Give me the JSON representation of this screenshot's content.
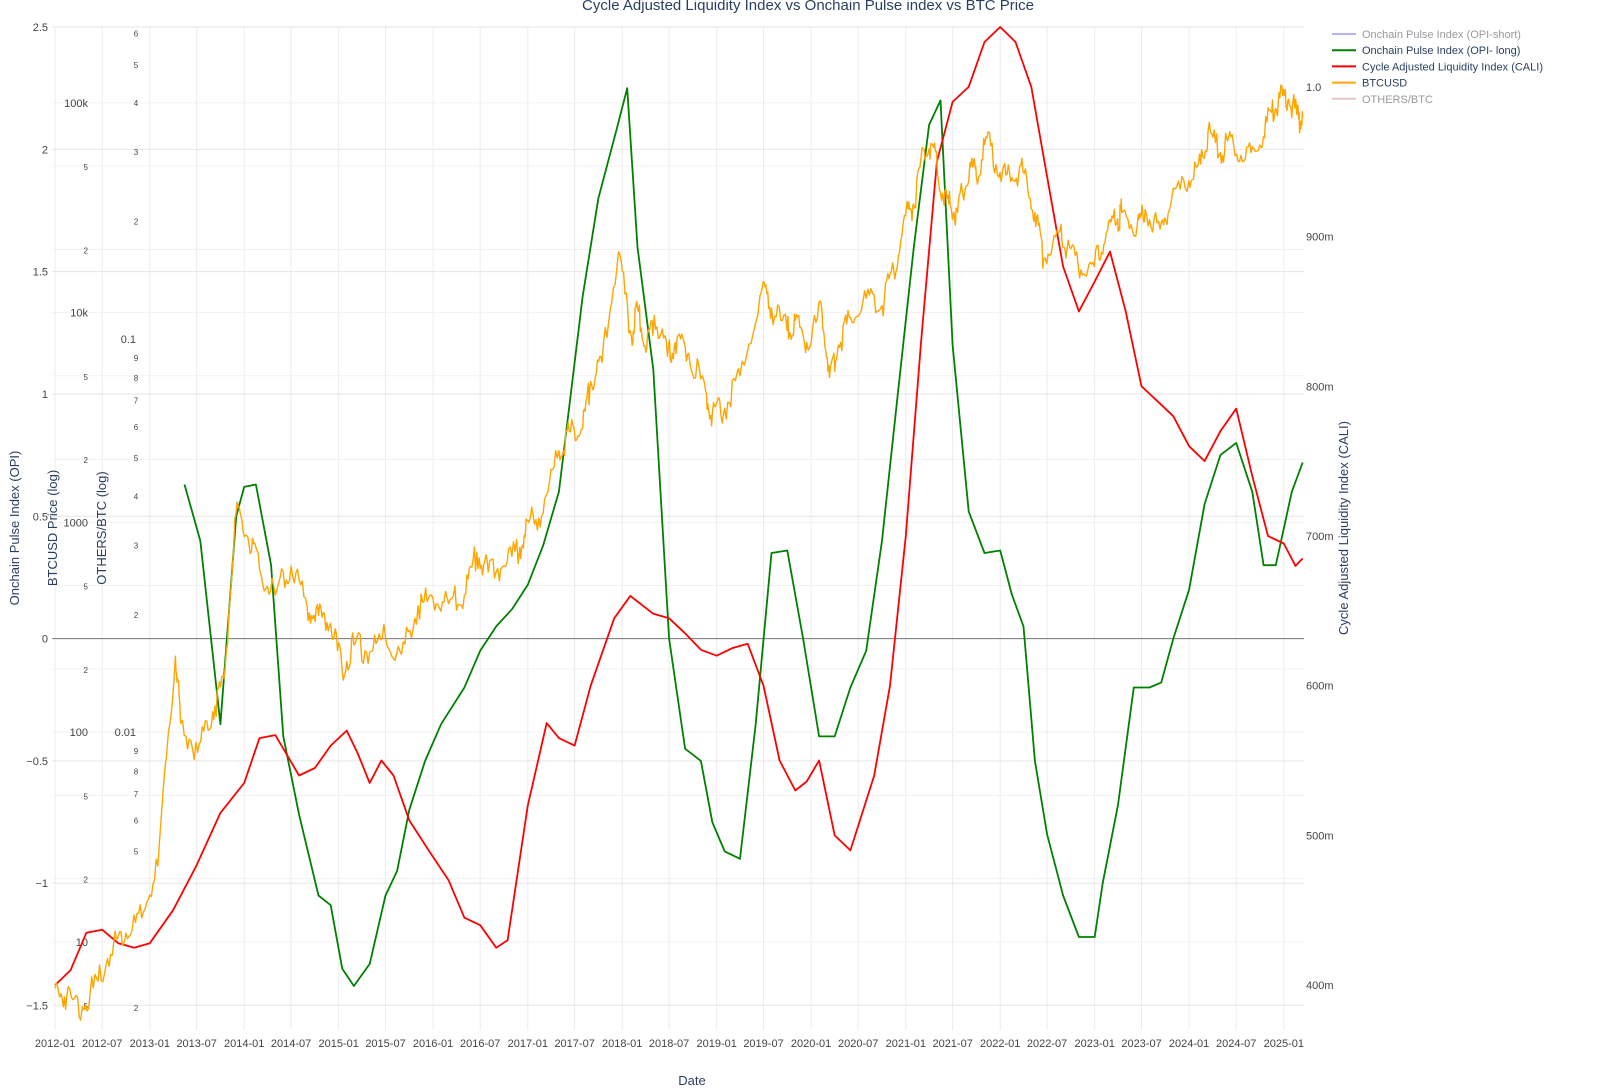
{
  "chart_data": {
    "type": "line",
    "title": "Cycle Adjusted Liquidity Index vs Onchain Pulse index vs BTC Price",
    "xlabel": "Date",
    "x_ticks": [
      "2012-01",
      "2012-07",
      "2013-01",
      "2013-07",
      "2014-01",
      "2014-07",
      "2015-01",
      "2015-07",
      "2016-01",
      "2016-07",
      "2017-01",
      "2017-07",
      "2018-01",
      "2018-07",
      "2019-01",
      "2019-07",
      "2020-01",
      "2020-07",
      "2021-01",
      "2021-07",
      "2022-01",
      "2022-07",
      "2023-01",
      "2023-07",
      "2024-01",
      "2024-07",
      "2025-01"
    ],
    "x_range": [
      "2011-12-20",
      "2025-03-20"
    ],
    "axes": {
      "opi": {
        "title": "Onchain Pulse Index (OPI)",
        "range": [
          -1.6,
          2.5
        ],
        "ticks": [
          {
            "v": 2.5,
            "t": "2.5"
          },
          {
            "v": 2,
            "t": "2"
          },
          {
            "v": 1.5,
            "t": "1.5"
          },
          {
            "v": 1,
            "t": "1"
          },
          {
            "v": 0.5,
            "t": "0.5"
          },
          {
            "v": 0,
            "t": "0"
          },
          {
            "v": -0.5,
            "t": "−0.5"
          },
          {
            "v": -1,
            "t": "−1"
          },
          {
            "v": -1.5,
            "t": "−1.5"
          }
        ]
      },
      "btc": {
        "title": "BTCUSD Price (log)",
        "scale": "log",
        "range": [
          3.8,
          230000
        ],
        "ticks": [
          {
            "v": 100000,
            "t": "100k"
          },
          {
            "v": 50000,
            "t": "5"
          },
          {
            "v": 20000,
            "t": "2"
          },
          {
            "v": 10000,
            "t": "10k"
          },
          {
            "v": 5000,
            "t": "5"
          },
          {
            "v": 2000,
            "t": "2"
          },
          {
            "v": 1000,
            "t": "1000"
          },
          {
            "v": 500,
            "t": "5"
          },
          {
            "v": 200,
            "t": "2"
          },
          {
            "v": 100,
            "t": "100"
          },
          {
            "v": 50,
            "t": "5"
          },
          {
            "v": 20,
            "t": "2"
          },
          {
            "v": 10,
            "t": "10"
          },
          {
            "v": 5,
            "t": "5"
          }
        ]
      },
      "others": {
        "title": "OTHERS/BTC (log)",
        "scale": "log",
        "range": [
          0.00175,
          0.62
        ],
        "ticks": [
          {
            "v": 0.6,
            "t": "6"
          },
          {
            "v": 0.5,
            "t": "5"
          },
          {
            "v": 0.4,
            "t": "4"
          },
          {
            "v": 0.3,
            "t": "3"
          },
          {
            "v": 0.2,
            "t": "2"
          },
          {
            "v": 0.1,
            "t": "0.1"
          },
          {
            "v": 0.09,
            "t": "9"
          },
          {
            "v": 0.08,
            "t": "8"
          },
          {
            "v": 0.07,
            "t": "7"
          },
          {
            "v": 0.06,
            "t": "6"
          },
          {
            "v": 0.05,
            "t": "5"
          },
          {
            "v": 0.04,
            "t": "4"
          },
          {
            "v": 0.03,
            "t": "3"
          },
          {
            "v": 0.02,
            "t": "2"
          },
          {
            "v": 0.01,
            "t": "0.01"
          },
          {
            "v": 0.009,
            "t": "9"
          },
          {
            "v": 0.008,
            "t": "8"
          },
          {
            "v": 0.007,
            "t": "7"
          },
          {
            "v": 0.006,
            "t": "6"
          },
          {
            "v": 0.005,
            "t": "5"
          },
          {
            "v": 0.002,
            "t": "2"
          }
        ]
      },
      "cali": {
        "title": "Cycle Adjusted Liquidity Index (CALI)",
        "range": [
          0.37,
          1.04
        ],
        "ticks": [
          {
            "v": 1.0,
            "t": "1.0"
          },
          {
            "v": 0.9,
            "t": "900m"
          },
          {
            "v": 0.8,
            "t": "800m"
          },
          {
            "v": 0.7,
            "t": "700m"
          },
          {
            "v": 0.6,
            "t": "600m"
          },
          {
            "v": 0.5,
            "t": "500m"
          },
          {
            "v": 0.4,
            "t": "400m"
          }
        ]
      }
    },
    "series": [
      {
        "name": "Onchain Pulse Index (OPI-short)",
        "color": "#8080ff",
        "axis": "opi",
        "visible": false
      },
      {
        "name": "Onchain Pulse Index (OPI- long)",
        "color": "#008000",
        "axis": "opi",
        "x": [
          "2013-05-15",
          "2013-07-15",
          "2013-10-01",
          "2013-12-01",
          "2014-01-01",
          "2014-02-15",
          "2014-04-15",
          "2014-06-01",
          "2014-08-01",
          "2014-10-15",
          "2014-12-01",
          "2015-01-15",
          "2015-03-01",
          "2015-05-01",
          "2015-07-01",
          "2015-08-15",
          "2015-10-01",
          "2015-12-01",
          "2016-02-01",
          "2016-05-01",
          "2016-07-01",
          "2016-09-01",
          "2016-11-01",
          "2017-01-01",
          "2017-03-01",
          "2017-05-01",
          "2017-08-01",
          "2017-10-01",
          "2017-12-15",
          "2018-01-20",
          "2018-03-01",
          "2018-05-01",
          "2018-07-01",
          "2018-09-01",
          "2018-11-01",
          "2018-12-15",
          "2019-02-01",
          "2019-04-01",
          "2019-06-01",
          "2019-08-01",
          "2019-10-01",
          "2019-12-01",
          "2020-02-01",
          "2020-04-01",
          "2020-06-01",
          "2020-08-01",
          "2020-10-01",
          "2020-12-01",
          "2021-02-01",
          "2021-04-01",
          "2021-05-15",
          "2021-07-01",
          "2021-09-01",
          "2021-11-01",
          "2022-01-01",
          "2022-02-15",
          "2022-04-01",
          "2022-05-15",
          "2022-07-01",
          "2022-09-01",
          "2022-11-01",
          "2023-01-01",
          "2023-02-01",
          "2023-04-01",
          "2023-06-01",
          "2023-08-01",
          "2023-09-15",
          "2023-11-01",
          "2024-01-01",
          "2024-03-01",
          "2024-05-01",
          "2024-07-01",
          "2024-09-01",
          "2024-10-15",
          "2024-12-01",
          "2025-02-01",
          "2025-03-15"
        ],
        "y": [
          0.63,
          0.4,
          -0.35,
          0.5,
          0.62,
          0.63,
          0.3,
          -0.4,
          -0.72,
          -1.05,
          -1.09,
          -1.35,
          -1.42,
          -1.33,
          -1.05,
          -0.95,
          -0.7,
          -0.5,
          -0.35,
          -0.2,
          -0.05,
          0.05,
          0.12,
          0.22,
          0.38,
          0.6,
          1.4,
          1.8,
          2.1,
          2.25,
          1.6,
          1.1,
          0.0,
          -0.45,
          -0.5,
          -0.75,
          -0.87,
          -0.9,
          -0.35,
          0.35,
          0.36,
          0.0,
          -0.4,
          -0.4,
          -0.2,
          -0.05,
          0.4,
          1.0,
          1.6,
          2.1,
          2.2,
          1.2,
          0.52,
          0.35,
          0.36,
          0.18,
          0.05,
          -0.5,
          -0.8,
          -1.05,
          -1.22,
          -1.22,
          -1.0,
          -0.68,
          -0.2,
          -0.2,
          -0.18,
          0.0,
          0.2,
          0.55,
          0.75,
          0.8,
          0.6,
          0.3,
          0.3,
          0.6,
          0.72
        ]
      },
      {
        "name": "Cycle Adjusted Liquidity Index (CALI)",
        "color": "#ff0000",
        "axis": "cali",
        "x": [
          "2012-01-01",
          "2012-03-01",
          "2012-05-01",
          "2012-07-01",
          "2012-09-01",
          "2012-11-01",
          "2013-01-01",
          "2013-04-01",
          "2013-07-01",
          "2013-10-01",
          "2014-01-01",
          "2014-03-01",
          "2014-05-01",
          "2014-08-01",
          "2014-10-01",
          "2014-12-01",
          "2015-02-01",
          "2015-03-15",
          "2015-05-01",
          "2015-06-15",
          "2015-08-01",
          "2015-10-01",
          "2015-12-15",
          "2016-03-01",
          "2016-05-01",
          "2016-07-01",
          "2016-09-01",
          "2016-10-15",
          "2017-01-01",
          "2017-03-15",
          "2017-05-01",
          "2017-07-01",
          "2017-09-01",
          "2017-12-01",
          "2018-02-01",
          "2018-05-01",
          "2018-07-01",
          "2018-09-01",
          "2018-11-01",
          "2019-01-01",
          "2019-03-01",
          "2019-05-01",
          "2019-07-01",
          "2019-09-01",
          "2019-11-01",
          "2019-12-15",
          "2020-02-01",
          "2020-04-01",
          "2020-06-01",
          "2020-09-01",
          "2020-11-01",
          "2021-01-01",
          "2021-03-01",
          "2021-05-01",
          "2021-07-01",
          "2021-09-01",
          "2021-11-01",
          "2022-01-01",
          "2022-03-01",
          "2022-05-01",
          "2022-07-01",
          "2022-09-01",
          "2022-11-01",
          "2023-01-01",
          "2023-03-01",
          "2023-05-01",
          "2023-07-01",
          "2023-09-01",
          "2023-11-01",
          "2024-01-01",
          "2024-03-01",
          "2024-05-01",
          "2024-07-01",
          "2024-09-01",
          "2024-11-01",
          "2025-01-01",
          "2025-02-15",
          "2025-03-15"
        ],
        "y": [
          0.4,
          0.41,
          0.435,
          0.437,
          0.428,
          0.425,
          0.428,
          0.45,
          0.48,
          0.515,
          0.535,
          0.565,
          0.567,
          0.54,
          0.545,
          0.56,
          0.57,
          0.555,
          0.535,
          0.55,
          0.54,
          0.51,
          0.49,
          0.47,
          0.445,
          0.44,
          0.425,
          0.43,
          0.52,
          0.575,
          0.565,
          0.56,
          0.6,
          0.645,
          0.66,
          0.648,
          0.645,
          0.635,
          0.624,
          0.62,
          0.625,
          0.628,
          0.6,
          0.55,
          0.53,
          0.536,
          0.55,
          0.5,
          0.49,
          0.54,
          0.6,
          0.7,
          0.83,
          0.95,
          0.99,
          1.0,
          1.03,
          1.04,
          1.03,
          1.0,
          0.94,
          0.88,
          0.85,
          0.87,
          0.89,
          0.85,
          0.8,
          0.79,
          0.78,
          0.76,
          0.75,
          0.77,
          0.785,
          0.74,
          0.7,
          0.695,
          0.68,
          0.685
        ]
      },
      {
        "name": "BTCUSD",
        "color": "#ffa500",
        "axis": "btc",
        "x": [
          "2012-01-01",
          "2012-02-15",
          "2012-04-15",
          "2012-06-15",
          "2012-08-15",
          "2012-10-01",
          "2012-12-01",
          "2013-02-01",
          "2013-04-10",
          "2013-05-01",
          "2013-07-05",
          "2013-09-01",
          "2013-10-15",
          "2013-11-30",
          "2014-01-15",
          "2014-03-01",
          "2014-05-01",
          "2014-07-01",
          "2014-09-01",
          "2014-10-15",
          "2014-12-01",
          "2015-01-14",
          "2015-03-01",
          "2015-05-01",
          "2015-07-01",
          "2015-09-01",
          "2015-11-04",
          "2016-01-01",
          "2016-03-01",
          "2016-05-01",
          "2016-06-18",
          "2016-08-01",
          "2016-10-01",
          "2016-12-01",
          "2017-01-05",
          "2017-03-01",
          "2017-05-01",
          "2017-06-15",
          "2017-08-01",
          "2017-09-01",
          "2017-10-15",
          "2017-12-17",
          "2018-02-06",
          "2018-03-01",
          "2018-04-06",
          "2018-05-05",
          "2018-06-25",
          "2018-08-01",
          "2018-09-15",
          "2018-11-20",
          "2018-12-15",
          "2019-02-01",
          "2019-04-01",
          "2019-06-26",
          "2019-08-01",
          "2019-09-30",
          "2019-11-01",
          "2019-12-15",
          "2020-02-12",
          "2020-03-12",
          "2020-04-15",
          "2020-06-01",
          "2020-08-01",
          "2020-10-01",
          "2020-11-15",
          "2020-12-31",
          "2021-01-31",
          "2021-03-13",
          "2021-04-14",
          "2021-05-23",
          "2021-06-22",
          "2021-07-20",
          "2021-09-06",
          "2021-10-01",
          "2021-11-10",
          "2021-12-31",
          "2022-02-15",
          "2022-03-30",
          "2022-05-15",
          "2022-06-18",
          "2022-08-15",
          "2022-09-15",
          "2022-11-09",
          "2022-12-31",
          "2023-02-15",
          "2023-03-31",
          "2023-04-15",
          "2023-06-15",
          "2023-07-15",
          "2023-09-11",
          "2023-10-25",
          "2023-12-31",
          "2024-02-15",
          "2024-03-14",
          "2024-05-01",
          "2024-06-10",
          "2024-08-05",
          "2024-09-30",
          "2024-11-15",
          "2024-12-17",
          "2025-01-20",
          "2025-02-28",
          "2025-03-15"
        ],
        "y": [
          6,
          5.5,
          4.9,
          6.5,
          10,
          11,
          13,
          23,
          230,
          110,
          80,
          125,
          180,
          1100,
          850,
          600,
          450,
          620,
          400,
          360,
          330,
          200,
          260,
          240,
          285,
          235,
          400,
          430,
          410,
          450,
          720,
          580,
          620,
          760,
          1000,
          1100,
          2200,
          2700,
          2800,
          4700,
          5800,
          19500,
          7500,
          10500,
          6800,
          9700,
          6200,
          7600,
          6400,
          4200,
          3300,
          3500,
          5000,
          13000,
          10500,
          8200,
          9200,
          7200,
          10300,
          4900,
          7000,
          9500,
          11700,
          10800,
          16000,
          29000,
          33000,
          60000,
          63500,
          37000,
          32000,
          30000,
          52000,
          44000,
          68000,
          46500,
          44000,
          47000,
          30000,
          18000,
          24000,
          19500,
          16000,
          16600,
          24000,
          28000,
          30000,
          26500,
          31000,
          25000,
          34500,
          42500,
          51000,
          73000,
          58000,
          69000,
          54000,
          63000,
          90000,
          106000,
          104000,
          84000,
          85000
        ]
      },
      {
        "name": "OTHERS/BTC",
        "color": "#d8a0a0",
        "axis": "others",
        "visible": false
      }
    ],
    "annotations": [
      {
        "text": "0",
        "axis": "opi",
        "y": 0,
        "type": "hline"
      }
    ],
    "legend": "top-right",
    "grid": true
  }
}
